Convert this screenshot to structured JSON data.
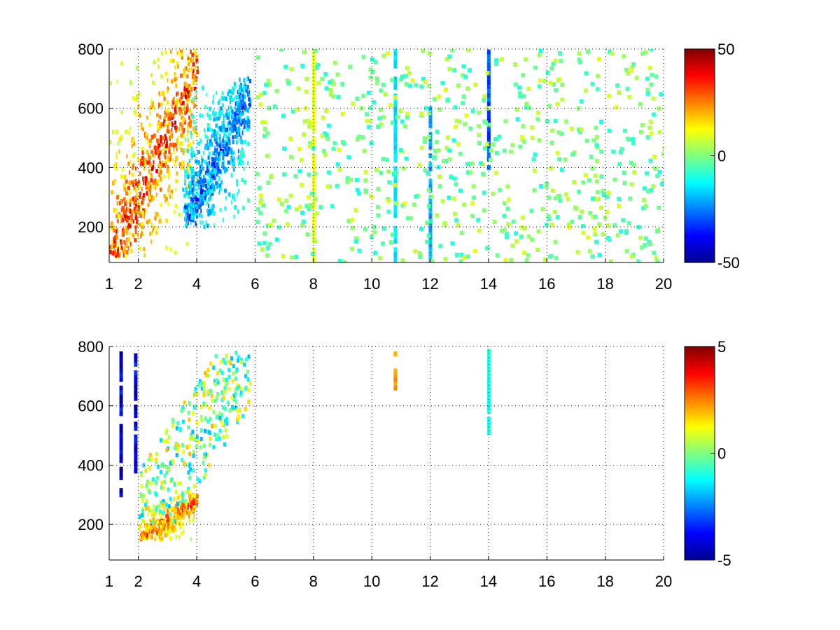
{
  "chart_data": [
    {
      "type": "heatmap",
      "panel": "top",
      "xlim": [
        1,
        20
      ],
      "ylim": [
        80,
        800
      ],
      "x_ticks": [
        1,
        2,
        4,
        6,
        8,
        10,
        12,
        14,
        16,
        18,
        20
      ],
      "x_tick_labels": [
        "1",
        "2",
        "4",
        "6",
        "8",
        "10",
        "12",
        "14",
        "16",
        "18",
        "20"
      ],
      "y_ticks": [
        200,
        400,
        600,
        800
      ],
      "y_tick_labels": [
        "200",
        "400",
        "600",
        "800"
      ],
      "grid": true,
      "colormap": "jet",
      "clim": [
        -50,
        50
      ],
      "colorbar_ticks": [
        50,
        0,
        -50
      ],
      "colorbar_tick_labels": [
        "50",
        "0",
        "-50"
      ],
      "features": [
        {
          "desc": "dense warm band",
          "x_range": [
            1.0,
            4.0
          ],
          "y_range": [
            100,
            800
          ],
          "peak_value": 45
        },
        {
          "desc": "cold streak",
          "x_range": [
            3.5,
            5.8
          ],
          "y_range": [
            200,
            700
          ],
          "peak_value": -40
        },
        {
          "desc": "vertical stripe",
          "x": 8.0,
          "y_range": [
            80,
            800
          ],
          "value": 10
        },
        {
          "desc": "vertical stripe",
          "x": 10.8,
          "y_range": [
            80,
            800
          ],
          "value": -15
        },
        {
          "desc": "vertical stripe",
          "x": 12.0,
          "y_range": [
            80,
            600
          ],
          "value": -20
        },
        {
          "desc": "vertical stripe",
          "x": 14.0,
          "y_range": [
            400,
            800
          ],
          "value": -30
        },
        {
          "desc": "scattered sparse cells",
          "x_range": [
            6,
            20
          ],
          "y_range": [
            80,
            800
          ],
          "value_range": [
            -10,
            10
          ]
        }
      ]
    },
    {
      "type": "heatmap",
      "panel": "bottom",
      "xlim": [
        1,
        20
      ],
      "ylim": [
        80,
        800
      ],
      "x_ticks": [
        1,
        2,
        4,
        6,
        8,
        10,
        12,
        14,
        16,
        18,
        20
      ],
      "x_tick_labels": [
        "1",
        "2",
        "4",
        "6",
        "8",
        "10",
        "12",
        "14",
        "16",
        "18",
        "20"
      ],
      "y_ticks": [
        200,
        400,
        600,
        800
      ],
      "y_tick_labels": [
        "200",
        "400",
        "600",
        "800"
      ],
      "grid": true,
      "colormap": "jet",
      "clim": [
        -5,
        5
      ],
      "colorbar_ticks": [
        5,
        0,
        -5
      ],
      "colorbar_tick_labels": [
        "5",
        "0",
        "-5"
      ],
      "features": [
        {
          "desc": "warm core",
          "x_range": [
            2.0,
            4.0
          ],
          "y_range": [
            150,
            300
          ],
          "peak_value": 4
        },
        {
          "desc": "mixed band",
          "x_range": [
            2.0,
            5.8
          ],
          "y_range": [
            200,
            780
          ],
          "value_range": [
            -2,
            2
          ]
        },
        {
          "desc": "vertical stripe",
          "x": 1.4,
          "y_range": [
            300,
            780
          ],
          "value": -4
        },
        {
          "desc": "vertical stripe",
          "x": 1.9,
          "y_range": [
            380,
            780
          ],
          "value": -4
        },
        {
          "desc": "vertical stripe",
          "x": 10.8,
          "y_range": [
            660,
            780
          ],
          "value": 2.5
        },
        {
          "desc": "vertical stripe",
          "x": 14.0,
          "y_range": [
            510,
            790
          ],
          "value": -1
        }
      ]
    }
  ]
}
